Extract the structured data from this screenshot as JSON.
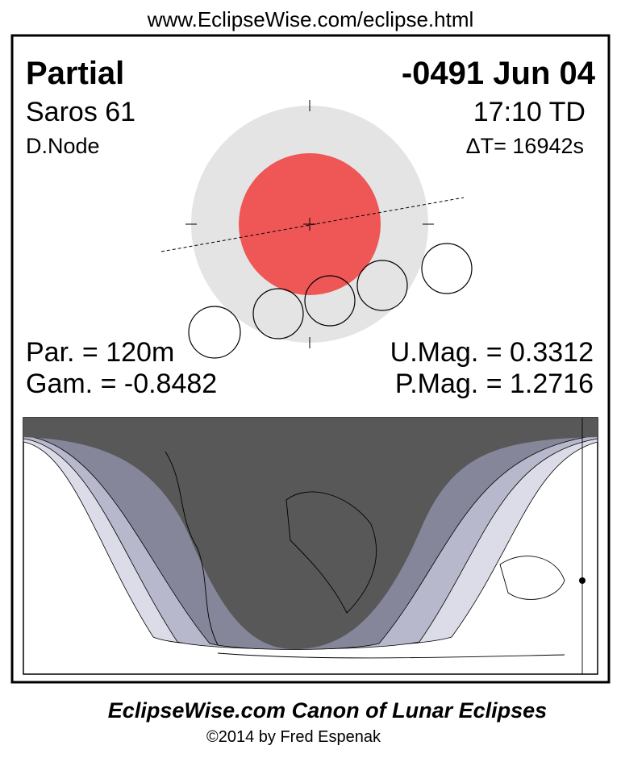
{
  "header": {
    "url": "www.EclipseWise.com/eclipse.html"
  },
  "eclipse": {
    "type": "Partial",
    "date": "-0491 Jun 04",
    "saros": "Saros  61",
    "time": "17:10 TD",
    "node": "D.Node",
    "delta_t": "ΔT=  16942s",
    "duration": "Par. = 120m",
    "gamma": "Gam. = -0.8482",
    "umbral_magnitude": "U.Mag. = 0.3312",
    "penumbral_magnitude": "P.Mag. = 1.2716"
  },
  "footer": {
    "title": "EclipseWise.com Canon of Lunar Eclipses",
    "copyright": "©2014 by Fred Espenak"
  }
}
